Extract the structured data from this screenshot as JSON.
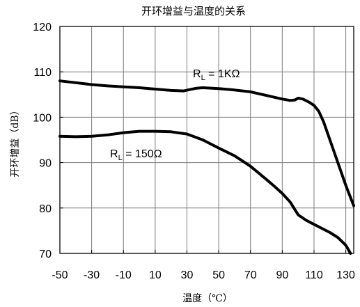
{
  "chart_data": {
    "type": "line",
    "title": "开环增益与温度的关系",
    "xlabel": "温度（℃）",
    "ylabel": "开环增益（dB）",
    "xlim": [
      -50,
      135
    ],
    "ylim": [
      70,
      120
    ],
    "xticks": [
      -50,
      -30,
      -10,
      10,
      30,
      50,
      70,
      90,
      110,
      130
    ],
    "yticks": [
      70,
      80,
      90,
      100,
      110,
      120
    ],
    "grid": true,
    "series": [
      {
        "name": "RL = 1KΩ",
        "label_main": "R",
        "label_sub": "L",
        "label_rest": " = 1KΩ",
        "x": [
          -50,
          -40,
          -30,
          -20,
          -10,
          0,
          10,
          20,
          28,
          32,
          36,
          40,
          50,
          60,
          70,
          80,
          90,
          95,
          98,
          100,
          103,
          107,
          110,
          113,
          116,
          120,
          125,
          130,
          135
        ],
        "y": [
          108,
          107.6,
          107.2,
          106.9,
          106.7,
          106.5,
          106.2,
          105.9,
          105.8,
          106.1,
          106.4,
          106.5,
          106.3,
          106,
          105.6,
          104.8,
          104,
          103.7,
          103.8,
          104.2,
          104,
          103.3,
          102.6,
          101.3,
          99,
          95,
          90,
          85,
          80.5
        ]
      },
      {
        "name": "RL = 150Ω",
        "label_main": "R",
        "label_sub": "L",
        "label_rest": " = 150Ω",
        "x": [
          -50,
          -40,
          -30,
          -20,
          -10,
          0,
          10,
          20,
          30,
          40,
          50,
          60,
          70,
          80,
          85,
          90,
          95,
          100,
          105,
          110,
          115,
          120,
          125,
          130,
          133
        ],
        "y": [
          95.8,
          95.7,
          95.8,
          96.1,
          96.6,
          96.9,
          96.9,
          96.8,
          96.3,
          95,
          93.2,
          91.5,
          89.2,
          86.3,
          84.8,
          83.2,
          81.3,
          78.5,
          77.3,
          76.4,
          75.5,
          74.6,
          73.5,
          71.8,
          70
        ]
      }
    ]
  }
}
